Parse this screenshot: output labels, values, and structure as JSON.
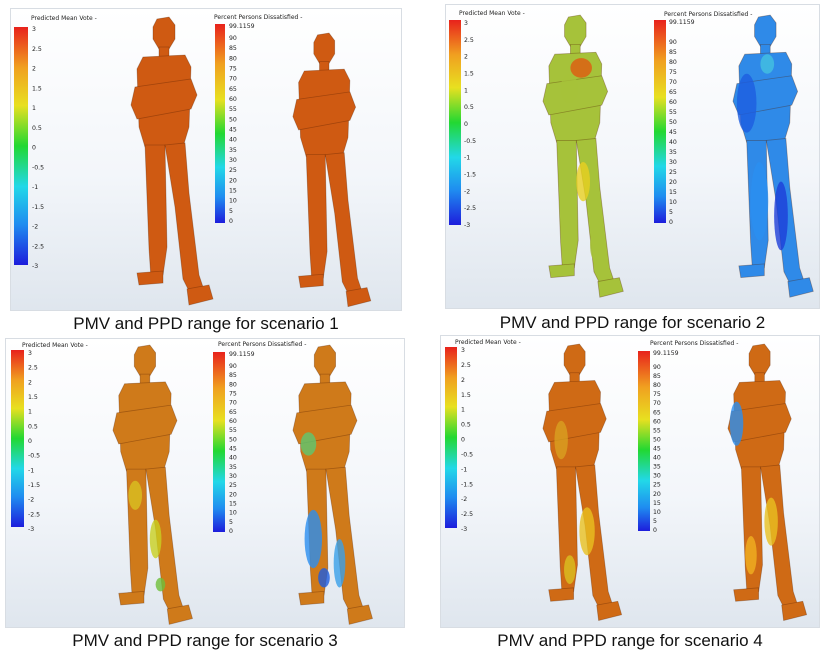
{
  "colors": {
    "scale": [
      "#1d1ddc",
      "#1f8cf0",
      "#22d8e8",
      "#22d832",
      "#d8e820",
      "#f0a020",
      "#e8221c"
    ],
    "body_base": [
      "#cf5a12",
      "#a6c23a",
      "#cf7a1a",
      "#cf6a15"
    ],
    "vis_background": "#eef2f6"
  },
  "panels": [
    {
      "caption": "PMV and PPD range for scenario 1",
      "pmv_title": "Predicted Mean Vote -",
      "pmv_ticks": [
        "3",
        "2.5",
        "2",
        "1.5",
        "1",
        "0.5",
        "0",
        "-0.5",
        "-1",
        "-1.5",
        "-2",
        "-2.5",
        "-3"
      ],
      "ppd_title": "Percent Persons Dissatisfied -",
      "ppd_max": "99.1159",
      "ppd_ticks": [
        "90",
        "85",
        "80",
        "75",
        "70",
        "65",
        "60",
        "55",
        "50",
        "45",
        "40",
        "35",
        "30",
        "25",
        "20",
        "15",
        "10",
        "5",
        "0"
      ]
    },
    {
      "caption": "PMV and PPD range for scenario 2",
      "pmv_title": "Predicted Mean Vote -",
      "pmv_ticks": [
        "3",
        "2.5",
        "2",
        "1.5",
        "1",
        "0.5",
        "0",
        "-0.5",
        "-1",
        "-1.5",
        "-2",
        "-2.5",
        "-3"
      ],
      "ppd_title": "Percent Persons Dissatisfied -",
      "ppd_max": "99.1159",
      "ppd_ticks": [
        "90",
        "85",
        "80",
        "75",
        "70",
        "65",
        "60",
        "55",
        "50",
        "45",
        "40",
        "35",
        "30",
        "25",
        "20",
        "15",
        "10",
        "5",
        "0"
      ]
    },
    {
      "caption": "PMV and PPD range for scenario 3",
      "pmv_title": "Predicted Mean Vote -",
      "pmv_ticks": [
        "3",
        "2.5",
        "2",
        "1.5",
        "1",
        "0.5",
        "0",
        "-0.5",
        "-1",
        "-1.5",
        "-2",
        "-2.5",
        "-3"
      ],
      "ppd_title": "Percent Persons Dissatisfied -",
      "ppd_max": "99.1159",
      "ppd_ticks": [
        "90",
        "85",
        "80",
        "75",
        "70",
        "65",
        "60",
        "55",
        "50",
        "45",
        "40",
        "35",
        "30",
        "25",
        "20",
        "15",
        "10",
        "5",
        "0"
      ]
    },
    {
      "caption": "PMV and PPD range for scenario 4",
      "pmv_title": "Predicted Mean Vote -",
      "pmv_ticks": [
        "3",
        "2.5",
        "2",
        "1.5",
        "1",
        "0.5",
        "0",
        "-0.5",
        "-1",
        "-1.5",
        "-2",
        "-2.5",
        "-3"
      ],
      "ppd_title": "Percent Persons Dissatisfied -",
      "ppd_max": "99.1159",
      "ppd_ticks": [
        "90",
        "85",
        "80",
        "75",
        "70",
        "65",
        "60",
        "55",
        "50",
        "45",
        "40",
        "35",
        "30",
        "25",
        "20",
        "15",
        "10",
        "5",
        "0"
      ]
    }
  ]
}
